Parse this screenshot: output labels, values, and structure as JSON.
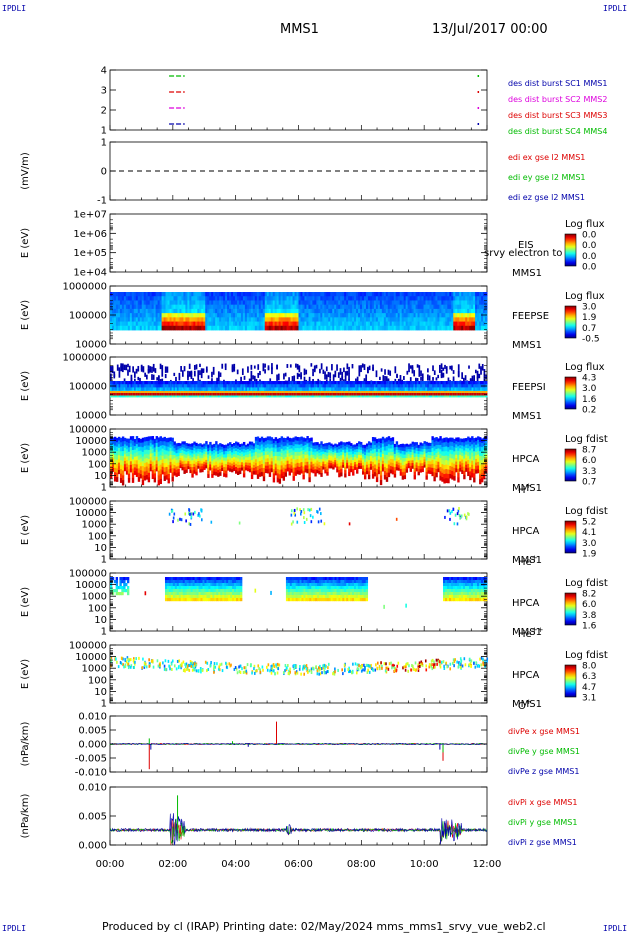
{
  "corner_label": "IPDLI",
  "header": {
    "spacecraft": "MMS1",
    "date": "13/Jul/2017 00:00"
  },
  "footer": {
    "text": "Produced by cl (IRAP)   Printing date: 02/May/2024   mms_mms1_srvy_vue_web2.cl"
  },
  "colors": {
    "red": "#dd0000",
    "green": "#00bb00",
    "blue": "#0000aa",
    "magenta": "#dd00dd",
    "black": "#000000"
  },
  "chart_data": [
    {
      "type": "line",
      "id": "burst",
      "yticks": [
        "4",
        "3",
        "2",
        "1"
      ],
      "series": [
        {
          "name": "des dist burst SC1 MMS1",
          "color": "#0000aa"
        },
        {
          "name": "des dist burst SC2 MMS2",
          "color": "#dd00dd"
        },
        {
          "name": "des dist burst SC3 MMS3",
          "color": "#dd0000"
        },
        {
          "name": "des dist burst SC4 MMS4",
          "color": "#00bb00"
        }
      ]
    },
    {
      "type": "line",
      "id": "edi",
      "ylabel": "(mV/m)",
      "yticks": [
        "1",
        "0",
        "-1"
      ],
      "series": [
        {
          "name": "edi ex gse l2 MMS1",
          "color": "#dd0000"
        },
        {
          "name": "edi ey gse l2 MMS1",
          "color": "#00bb00"
        },
        {
          "name": "edi ez gse l2 MMS1",
          "color": "#0000aa"
        }
      ]
    },
    {
      "type": "heatmap",
      "id": "eis",
      "ylabel": "E (eV)",
      "yticks": [
        "1e+07",
        "1e+06",
        "1e+05",
        "1e+04"
      ],
      "instrument": [
        "EIS",
        "MMS1"
      ],
      "overlay_text": "srvy electron to",
      "colorbar": {
        "title": "Log flux",
        "ticks": [
          "0.0",
          "0.0",
          "0.0",
          "0.0"
        ]
      }
    },
    {
      "type": "heatmap",
      "id": "feepse",
      "ylabel": "E (eV)",
      "yticks": [
        "1000000",
        "100000",
        "10000"
      ],
      "instrument": [
        "FEEPSE",
        "MMS1"
      ],
      "colorbar": {
        "title": "Log flux",
        "ticks": [
          "3.0",
          "1.9",
          "0.7",
          "-0.5"
        ]
      }
    },
    {
      "type": "heatmap",
      "id": "feepsi",
      "ylabel": "E (eV)",
      "yticks": [
        "1000000",
        "100000",
        "10000"
      ],
      "instrument": [
        "FEEPSI",
        "MMS1"
      ],
      "colorbar": {
        "title": "Log flux",
        "ticks": [
          "4.3",
          "3.0",
          "1.6",
          "0.2"
        ]
      }
    },
    {
      "type": "heatmap",
      "id": "hpca_h",
      "ylabel": "E (eV)",
      "yticks": [
        "100000",
        "10000",
        "1000",
        "100",
        "10",
        "1"
      ],
      "instrument": [
        "HPCA",
        "MMS1"
      ],
      "species": {
        "base": "H",
        "sup": "+"
      },
      "colorbar": {
        "title": "Log fdist",
        "ticks": [
          "8.7",
          "6.0",
          "3.3",
          "0.7"
        ]
      }
    },
    {
      "type": "heatmap",
      "id": "hpca_he",
      "ylabel": "E (eV)",
      "yticks": [
        "100000",
        "10000",
        "1000",
        "100",
        "10",
        "1"
      ],
      "instrument": [
        "HPCA",
        "MMS1"
      ],
      "species": {
        "base": "He",
        "sup": "+"
      },
      "colorbar": {
        "title": "Log fdist",
        "ticks": [
          "5.2",
          "4.1",
          "3.0",
          "1.9"
        ]
      }
    },
    {
      "type": "heatmap",
      "id": "hpca_hepp",
      "ylabel": "E (eV)",
      "yticks": [
        "100000",
        "10000",
        "1000",
        "100",
        "10",
        "1"
      ],
      "instrument": [
        "HPCA",
        "MMS1"
      ],
      "species": {
        "base": "He",
        "sup": "++"
      },
      "colorbar": {
        "title": "Log fdist",
        "ticks": [
          "8.2",
          "6.0",
          "3.8",
          "1.6"
        ]
      }
    },
    {
      "type": "heatmap",
      "id": "hpca_o",
      "ylabel": "E (eV)",
      "yticks": [
        "100000",
        "10000",
        "1000",
        "100",
        "10",
        "1"
      ],
      "instrument": [
        "HPCA",
        "MMS1"
      ],
      "species": {
        "base": "O",
        "sup": "+"
      },
      "colorbar": {
        "title": "Log fdist",
        "ticks": [
          "8.0",
          "6.3",
          "4.7",
          "3.1"
        ]
      }
    },
    {
      "type": "line",
      "id": "divpe",
      "ylabel": "(nPa/km)",
      "yticks": [
        "0.010",
        "0.005",
        "0.000",
        "-0.005",
        "-0.010"
      ],
      "series": [
        {
          "name": "divPe x gse MMS1",
          "color": "#dd0000"
        },
        {
          "name": "divPe y gse MMS1",
          "color": "#00bb00"
        },
        {
          "name": "divPe z gse MMS1",
          "color": "#0000aa"
        }
      ]
    },
    {
      "type": "line",
      "id": "divpi",
      "ylabel": "(nPa/km)",
      "yticks": [
        "0.010",
        "0.005",
        "0.000"
      ],
      "series": [
        {
          "name": "divPi x gse MMS1",
          "color": "#dd0000"
        },
        {
          "name": "divPi y gse MMS1",
          "color": "#00bb00"
        },
        {
          "name": "divPi z gse MMS1",
          "color": "#0000aa"
        }
      ]
    }
  ],
  "xaxis": {
    "ticks": [
      "00:00",
      "02:00",
      "04:00",
      "06:00",
      "08:00",
      "10:00",
      "12:00"
    ]
  }
}
